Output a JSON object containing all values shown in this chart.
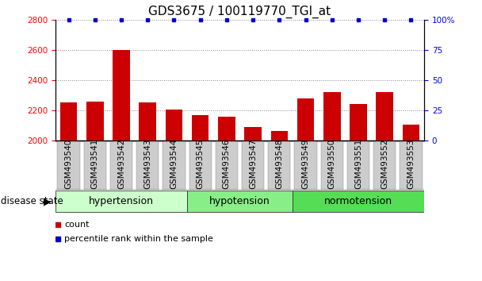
{
  "title": "GDS3675 / 100119770_TGI_at",
  "samples": [
    "GSM493540",
    "GSM493541",
    "GSM493542",
    "GSM493543",
    "GSM493544",
    "GSM493545",
    "GSM493546",
    "GSM493547",
    "GSM493548",
    "GSM493549",
    "GSM493550",
    "GSM493551",
    "GSM493552",
    "GSM493553"
  ],
  "counts": [
    2250,
    2260,
    2600,
    2250,
    2205,
    2170,
    2160,
    2090,
    2065,
    2280,
    2320,
    2240,
    2320,
    2105
  ],
  "percentiles": [
    100,
    100,
    100,
    100,
    100,
    100,
    100,
    100,
    100,
    100,
    100,
    100,
    100,
    100
  ],
  "ylim_left": [
    2000,
    2800
  ],
  "ylim_right": [
    0,
    100
  ],
  "yticks_left": [
    2000,
    2200,
    2400,
    2600,
    2800
  ],
  "yticks_right": [
    0,
    25,
    50,
    75,
    100
  ],
  "ytick_right_labels": [
    "0",
    "25",
    "50",
    "75",
    "100%"
  ],
  "bar_color": "#cc0000",
  "dot_color": "#0000cc",
  "bar_width": 0.65,
  "groups": [
    {
      "label": "hypertension",
      "start": 0,
      "end": 5,
      "color": "#ccffcc"
    },
    {
      "label": "hypotension",
      "start": 5,
      "end": 9,
      "color": "#88ee88"
    },
    {
      "label": "normotension",
      "start": 9,
      "end": 14,
      "color": "#55dd55"
    }
  ],
  "disease_state_label": "disease state",
  "legend_count_label": "count",
  "legend_pct_label": "percentile rank within the sample",
  "grid_color": "#888888",
  "title_fontsize": 11,
  "tick_fontsize": 7.5,
  "label_fontsize": 9
}
